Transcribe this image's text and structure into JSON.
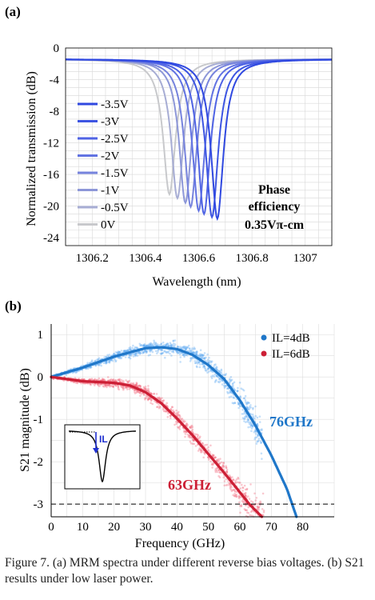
{
  "chart_data": [
    {
      "panel_label": "(a)",
      "type": "line",
      "xlabel": "Wavelength (nm)",
      "ylabel": "Normalized transmission (dB)",
      "xlim": [
        1306.1,
        1307.1
      ],
      "ylim": [
        -25,
        0
      ],
      "xticks": [
        "1306.2",
        "1306.4",
        "1306.6",
        "1306.8",
        "1307"
      ],
      "yticks": [
        "0",
        "-4",
        "-8",
        "-12",
        "-16",
        "-20",
        "-24"
      ],
      "grid": true,
      "legend": "left",
      "annotation": [
        "Phase",
        "efficiency",
        "0.35Vπ-cm"
      ],
      "series": [
        {
          "name": "-3.5V",
          "resonance_nm": 1306.67,
          "min_db": -21.6,
          "color": "#2f48e0"
        },
        {
          "name": "-3V",
          "resonance_nm": 1306.65,
          "min_db": -21.4,
          "color": "#3d55e2"
        },
        {
          "name": "-2.5V",
          "resonance_nm": 1306.62,
          "min_db": -21.0,
          "color": "#4f63e4"
        },
        {
          "name": "-2V",
          "resonance_nm": 1306.6,
          "min_db": -20.6,
          "color": "#6273e2"
        },
        {
          "name": "-1.5V",
          "resonance_nm": 1306.57,
          "min_db": -20.1,
          "color": "#7683dd"
        },
        {
          "name": "-1V",
          "resonance_nm": 1306.55,
          "min_db": -19.6,
          "color": "#8d97d8"
        },
        {
          "name": "-0.5V",
          "resonance_nm": 1306.52,
          "min_db": -19.0,
          "color": "#a7add4"
        },
        {
          "name": "0V",
          "resonance_nm": 1306.49,
          "min_db": -18.5,
          "color": "#c8c9cc"
        }
      ]
    },
    {
      "panel_label": "(b)",
      "type": "scatter",
      "xlabel": "Frequency (GHz)",
      "ylabel": "S21 magnitude (dB)",
      "xlim": [
        0,
        90
      ],
      "ylim": [
        -3.3,
        1.25
      ],
      "xticks": [
        "0",
        "10",
        "20",
        "30",
        "40",
        "50",
        "60",
        "70",
        "80"
      ],
      "yticks": [
        "1",
        "0",
        "-1",
        "-2",
        "-3"
      ],
      "grid": true,
      "legend": "top-right",
      "reference_line_db": -3,
      "series": [
        {
          "name": "IL=4dB",
          "color": "#1f77c9",
          "scatter_color": "#5aa6f0",
          "bandwidth_label": "76GHz",
          "fit_x": [
            0,
            10,
            20,
            30,
            35,
            40,
            45,
            50,
            55,
            60,
            65,
            70,
            75,
            78
          ],
          "fit_y": [
            0.0,
            0.22,
            0.48,
            0.68,
            0.7,
            0.66,
            0.52,
            0.28,
            -0.05,
            -0.55,
            -1.15,
            -1.85,
            -2.65,
            -3.3
          ],
          "scatter_x_range": [
            0,
            67
          ]
        },
        {
          "name": "IL=6dB",
          "color": "#cc1f35",
          "scatter_color": "#f06075",
          "bandwidth_label": "63GHz",
          "fit_x": [
            0,
            10,
            20,
            25,
            30,
            35,
            40,
            45,
            50,
            55,
            60,
            63,
            67
          ],
          "fit_y": [
            0.0,
            -0.1,
            -0.14,
            -0.2,
            -0.36,
            -0.62,
            -0.98,
            -1.38,
            -1.82,
            -2.26,
            -2.72,
            -3.0,
            -3.3
          ],
          "scatter_x_range": [
            0,
            68
          ]
        }
      ],
      "inset": {
        "label": "IL"
      }
    }
  ],
  "caption": "Figure 7. (a) MRM spectra under different reverse bias voltages. (b) S21 results under low laser power."
}
